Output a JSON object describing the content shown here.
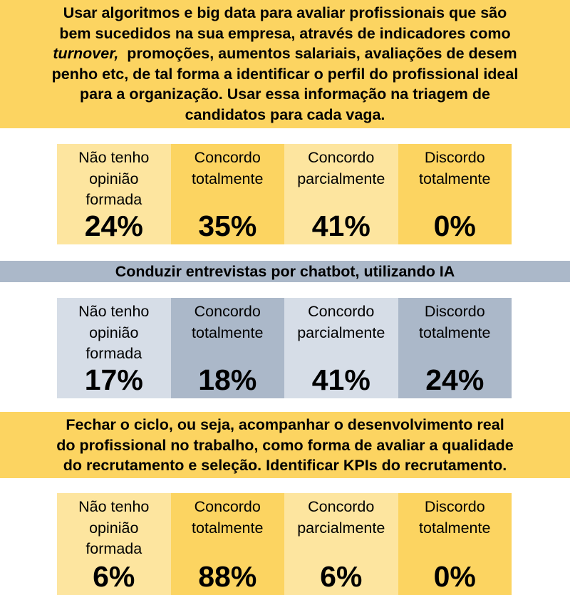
{
  "colors": {
    "yellow_dark": "#fcd461",
    "yellow_light": "#fde59f",
    "grey_dark": "#abb8c9",
    "grey_light": "#d6dde7"
  },
  "sections": [
    {
      "title_lines": [
        "Usar algoritmos e big data para avaliar profissionais que são",
        "bem sucedidos na sua empresa, através de indicadores como",
        [
          "turnover,",
          "  promoções, aumentos salariais, avaliações de desem"
        ],
        "penho etc, de tal forma a identificar o perfil do profissional ideal",
        "para a organização. Usar essa informação na triagem de",
        "candidatos para cada vaga."
      ],
      "options": [
        {
          "label": [
            "Não tenho",
            "opinião",
            "formada"
          ],
          "value": "24%"
        },
        {
          "label": [
            "Concordo",
            "totalmente"
          ],
          "value": "35%"
        },
        {
          "label": [
            "Concordo",
            "parcialmente"
          ],
          "value": "41%"
        },
        {
          "label": [
            "Discordo",
            "totalmente"
          ],
          "value": "0%"
        }
      ]
    },
    {
      "title_lines": [
        "Conduzir entrevistas por chatbot, utilizando IA"
      ],
      "options": [
        {
          "label": [
            "Não tenho",
            "opinião",
            "formada"
          ],
          "value": "17%"
        },
        {
          "label": [
            "Concordo",
            "totalmente"
          ],
          "value": "18%"
        },
        {
          "label": [
            "Concordo",
            "parcialmente"
          ],
          "value": "41%"
        },
        {
          "label": [
            "Discordo",
            "totalmente"
          ],
          "value": "24%"
        }
      ]
    },
    {
      "title_lines": [
        "Fechar o ciclo, ou seja, acompanhar o desenvolvimento real",
        "do profissional no trabalho, como forma de avaliar a qualidade",
        "do recrutamento e seleção. Identificar KPIs do recrutamento."
      ],
      "options": [
        {
          "label": [
            "Não tenho",
            "opinião",
            "formada"
          ],
          "value": "6%"
        },
        {
          "label": [
            "Concordo",
            "totalmente"
          ],
          "value": "88%"
        },
        {
          "label": [
            "Concordo",
            "parcialmente"
          ],
          "value": "6%"
        },
        {
          "label": [
            "Discordo",
            "totalmente"
          ],
          "value": "0%"
        }
      ]
    }
  ]
}
